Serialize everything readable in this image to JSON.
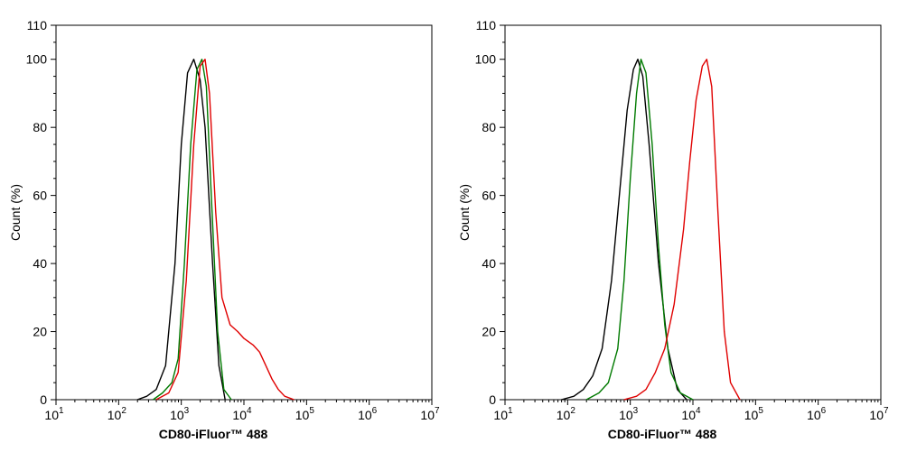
{
  "chart_data": [
    {
      "type": "line",
      "title": "",
      "xlabel": "CD80-iFluor™ 488",
      "ylabel": "Count  (%)",
      "x_scale": "log",
      "xlim": [
        1,
        7
      ],
      "ylim": [
        0,
        110
      ],
      "x_ticks": [
        {
          "base": "10",
          "exp": "1"
        },
        {
          "base": "10",
          "exp": "2"
        },
        {
          "base": "10",
          "exp": "3"
        },
        {
          "base": "10",
          "exp": "4"
        },
        {
          "base": "10",
          "exp": "5"
        },
        {
          "base": "10",
          "exp": "6"
        },
        {
          "base": "10",
          "exp": "7"
        }
      ],
      "y_ticks": [
        "0",
        "20",
        "40",
        "60",
        "80",
        "100",
        "110"
      ],
      "y_tick_values": [
        0,
        20,
        40,
        60,
        80,
        100,
        110
      ],
      "series": [
        {
          "name": "black",
          "color": "#000000",
          "x": [
            2.3,
            2.45,
            2.6,
            2.75,
            2.9,
            3.0,
            3.1,
            3.2,
            3.3,
            3.38,
            3.5,
            3.6,
            3.7
          ],
          "y": [
            0,
            1,
            3,
            10,
            40,
            75,
            96,
            100,
            94,
            80,
            40,
            10,
            0
          ]
        },
        {
          "name": "green",
          "color": "#007a00",
          "x": [
            2.55,
            2.7,
            2.85,
            2.95,
            3.05,
            3.15,
            3.25,
            3.33,
            3.4,
            3.48,
            3.58,
            3.68,
            3.8
          ],
          "y": [
            0,
            2,
            5,
            12,
            40,
            75,
            97,
            100,
            92,
            60,
            20,
            3,
            0
          ]
        },
        {
          "name": "red",
          "color": "#e00000",
          "x": [
            2.6,
            2.8,
            2.95,
            3.08,
            3.2,
            3.3,
            3.38,
            3.45,
            3.55,
            3.65,
            3.78,
            3.9,
            4.0,
            4.15,
            4.25,
            4.35,
            4.45,
            4.55,
            4.65,
            4.8
          ],
          "y": [
            0,
            2,
            8,
            35,
            75,
            98,
            100,
            90,
            55,
            30,
            22,
            20,
            18,
            16,
            14,
            10,
            6,
            3,
            1,
            0
          ]
        }
      ]
    },
    {
      "type": "line",
      "title": "",
      "xlabel": "CD80-iFluor™ 488",
      "ylabel": "Count  (%)",
      "x_scale": "log",
      "xlim": [
        1,
        7
      ],
      "ylim": [
        0,
        110
      ],
      "x_ticks": [
        {
          "base": "10",
          "exp": "1"
        },
        {
          "base": "10",
          "exp": "2"
        },
        {
          "base": "10",
          "exp": "3"
        },
        {
          "base": "10",
          "exp": "4"
        },
        {
          "base": "10",
          "exp": "5"
        },
        {
          "base": "10",
          "exp": "6"
        },
        {
          "base": "10",
          "exp": "7"
        }
      ],
      "y_ticks": [
        "0",
        "20",
        "40",
        "60",
        "80",
        "100",
        "110"
      ],
      "y_tick_values": [
        0,
        20,
        40,
        60,
        80,
        100,
        110
      ],
      "series": [
        {
          "name": "black",
          "color": "#000000",
          "x": [
            1.9,
            2.1,
            2.25,
            2.4,
            2.55,
            2.7,
            2.85,
            2.95,
            3.05,
            3.12,
            3.2,
            3.3,
            3.45,
            3.6,
            3.75,
            3.9
          ],
          "y": [
            0,
            1,
            3,
            7,
            15,
            35,
            65,
            85,
            97,
            100,
            95,
            75,
            40,
            15,
            3,
            0
          ]
        },
        {
          "name": "green",
          "color": "#007a00",
          "x": [
            2.3,
            2.5,
            2.65,
            2.8,
            2.9,
            3.0,
            3.1,
            3.17,
            3.25,
            3.35,
            3.45,
            3.55,
            3.65,
            3.8,
            4.0
          ],
          "y": [
            0,
            2,
            5,
            15,
            35,
            65,
            90,
            100,
            96,
            75,
            45,
            22,
            8,
            2,
            0
          ]
        },
        {
          "name": "red",
          "color": "#e00000",
          "x": [
            2.9,
            3.1,
            3.25,
            3.4,
            3.55,
            3.7,
            3.85,
            3.95,
            4.05,
            4.15,
            4.22,
            4.3,
            4.4,
            4.5,
            4.6,
            4.75
          ],
          "y": [
            0,
            1,
            3,
            8,
            15,
            28,
            50,
            70,
            88,
            98,
            100,
            92,
            55,
            20,
            5,
            0
          ]
        }
      ]
    }
  ]
}
